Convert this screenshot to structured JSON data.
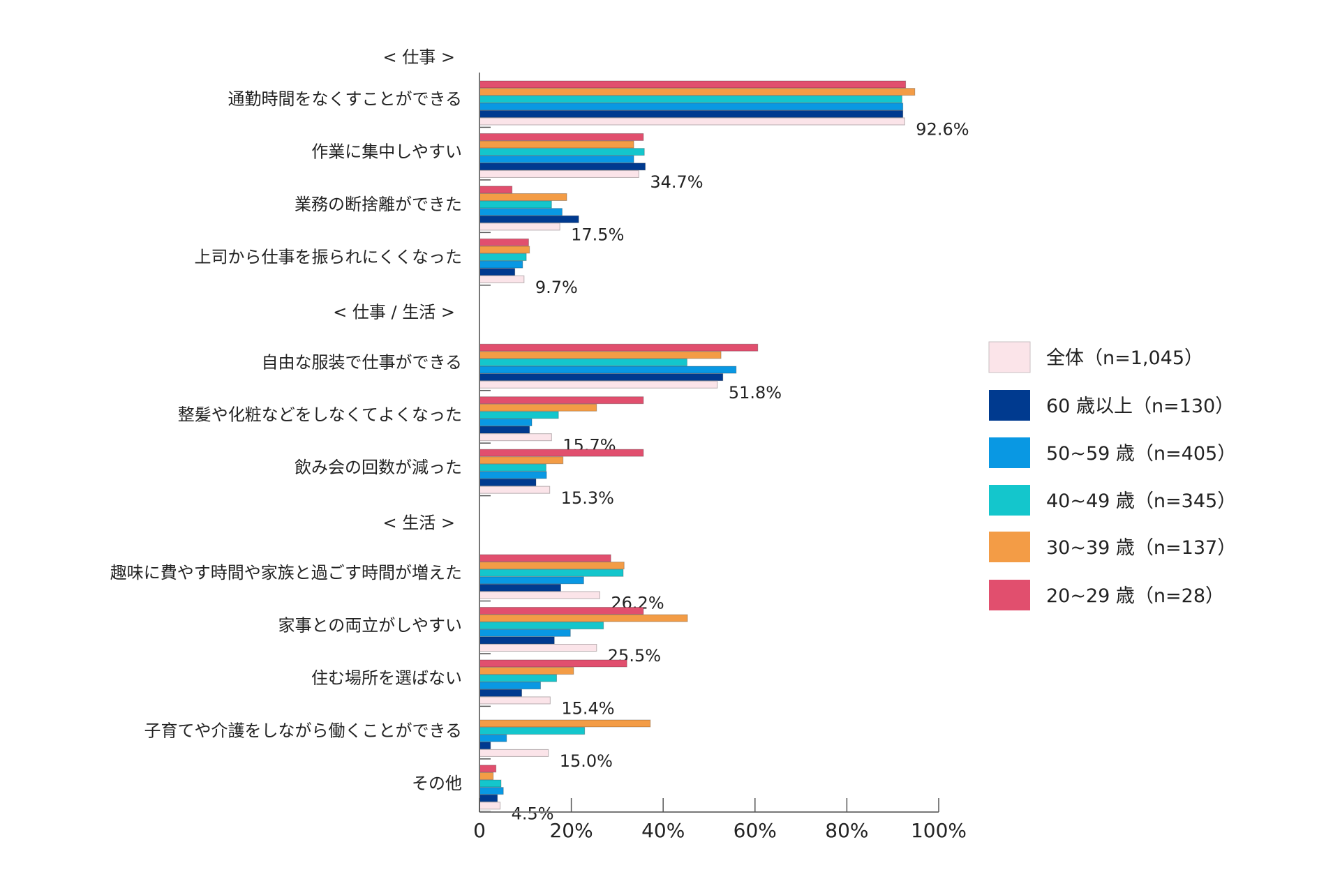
{
  "chart_data": {
    "type": "bar",
    "orientation": "horizontal",
    "xlim": [
      0,
      100
    ],
    "x_ticks": [
      "0",
      "20%",
      "40%",
      "60%",
      "80%",
      "100%"
    ],
    "grid": false,
    "legend_position": "right",
    "colors": {
      "全体": "#fbe4e9",
      "60歳以上": "#003a8f",
      "50~59歳": "#0998e3",
      "40~49歳": "#14c6cc",
      "30~39歳": "#f39c46",
      "20~29歳": "#e14f6e"
    },
    "groups": [
      {
        "header": "< 仕事 >",
        "categories": [
          {
            "label": "通勤時間をなくすことができる",
            "value_label": "92.6%"
          },
          {
            "label": "作業に集中しやすい",
            "value_label": "34.7%"
          },
          {
            "label": "業務の断捨離ができた",
            "value_label": "17.5%"
          },
          {
            "label": "上司から仕事を振られにくくなった",
            "value_label": "9.7%"
          }
        ]
      },
      {
        "header": "< 仕事 / 生活 >",
        "categories": [
          {
            "label": "自由な服装で仕事ができる",
            "value_label": "51.8%"
          },
          {
            "label": "整髪や化粧などをしなくてよくなった",
            "value_label": "15.7%"
          },
          {
            "label": "飲み会の回数が減った",
            "value_label": "15.3%"
          }
        ]
      },
      {
        "header": "< 生活 >",
        "categories": [
          {
            "label": "趣味に費やす時間や家族と過ごす時間が増えた",
            "value_label": "26.2%"
          },
          {
            "label": "家事との両立がしやすい",
            "value_label": "25.5%"
          },
          {
            "label": "住む場所を選ばない",
            "value_label": "15.4%"
          },
          {
            "label": "子育てや介護をしながら働くことができる",
            "value_label": "15.0%"
          },
          {
            "label": "その他",
            "value_label": "4.5%"
          }
        ]
      }
    ],
    "series": [
      {
        "name": "20~29 歳（n=28）",
        "key": "20~29歳",
        "values": [
          92.8,
          35.7,
          7.1,
          10.7,
          60.6,
          35.7,
          35.7,
          28.6,
          35.7,
          32.1,
          0,
          3.6
        ]
      },
      {
        "name": "30~39 歳（n=137）",
        "key": "30~39歳",
        "values": [
          94.8,
          33.6,
          19.0,
          10.9,
          52.6,
          25.5,
          18.2,
          31.5,
          45.3,
          20.5,
          37.2,
          3.0
        ]
      },
      {
        "name": "40~49 歳（n=345）",
        "key": "40~49歳",
        "values": [
          92.0,
          35.9,
          15.7,
          10.2,
          45.2,
          17.2,
          14.5,
          31.3,
          27.0,
          16.8,
          22.9,
          4.7
        ]
      },
      {
        "name": "50~59 歳（n=405）",
        "key": "50~59歳",
        "values": [
          92.2,
          33.6,
          18.0,
          9.4,
          55.9,
          11.4,
          14.6,
          22.7,
          19.8,
          13.3,
          5.9,
          5.2
        ]
      },
      {
        "name": "60 歳以上（n=130）",
        "key": "60歳以上",
        "values": [
          92.2,
          36.1,
          21.6,
          7.7,
          53.0,
          10.9,
          12.3,
          17.7,
          16.3,
          9.2,
          2.4,
          3.9
        ]
      },
      {
        "name": "全体（n=1,045）",
        "key": "全体",
        "values": [
          92.6,
          34.7,
          17.5,
          9.7,
          51.8,
          15.7,
          15.3,
          26.2,
          25.5,
          15.4,
          15.0,
          4.5
        ]
      }
    ],
    "legend_order": [
      "全体",
      "60歳以上",
      "50~59歳",
      "40~49歳",
      "30~39歳",
      "20~29歳"
    ]
  }
}
